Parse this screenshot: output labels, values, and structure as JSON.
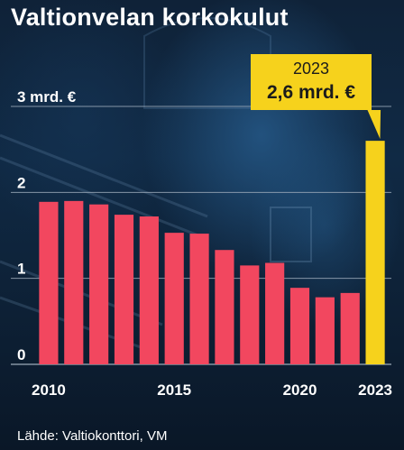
{
  "title": "Valtionvelan korkokulut",
  "source": "Lähde: Valtiokonttori, VM",
  "colors": {
    "bar": "#f2475f",
    "highlight": "#f6d21c",
    "gridline": "#9aa8b8",
    "text": "#ffffff",
    "background": "#0e2036"
  },
  "callout": {
    "year": "2023",
    "value": "2,6 mrd. €"
  },
  "chart_data": {
    "type": "bar",
    "categories": [
      "2010",
      "2011",
      "2012",
      "2013",
      "2014",
      "2015",
      "2016",
      "2017",
      "2018",
      "2019",
      "2020",
      "2021",
      "2022",
      "2023"
    ],
    "values": [
      1.89,
      1.9,
      1.86,
      1.74,
      1.72,
      1.53,
      1.52,
      1.33,
      1.15,
      1.18,
      0.89,
      0.78,
      0.83,
      2.6
    ],
    "highlight_category": "2023",
    "ylim": [
      0,
      3
    ],
    "yticks": [
      {
        "value": 0,
        "label": "0"
      },
      {
        "value": 1,
        "label": "1"
      },
      {
        "value": 2,
        "label": "2"
      },
      {
        "value": 3,
        "label": "3 mrd. €"
      }
    ],
    "xtick_labels": [
      {
        "category": "2010",
        "label": "2010"
      },
      {
        "category": "2015",
        "label": "2015"
      },
      {
        "category": "2020",
        "label": "2020"
      },
      {
        "category": "2023",
        "label": "2023"
      }
    ],
    "grid": true
  }
}
